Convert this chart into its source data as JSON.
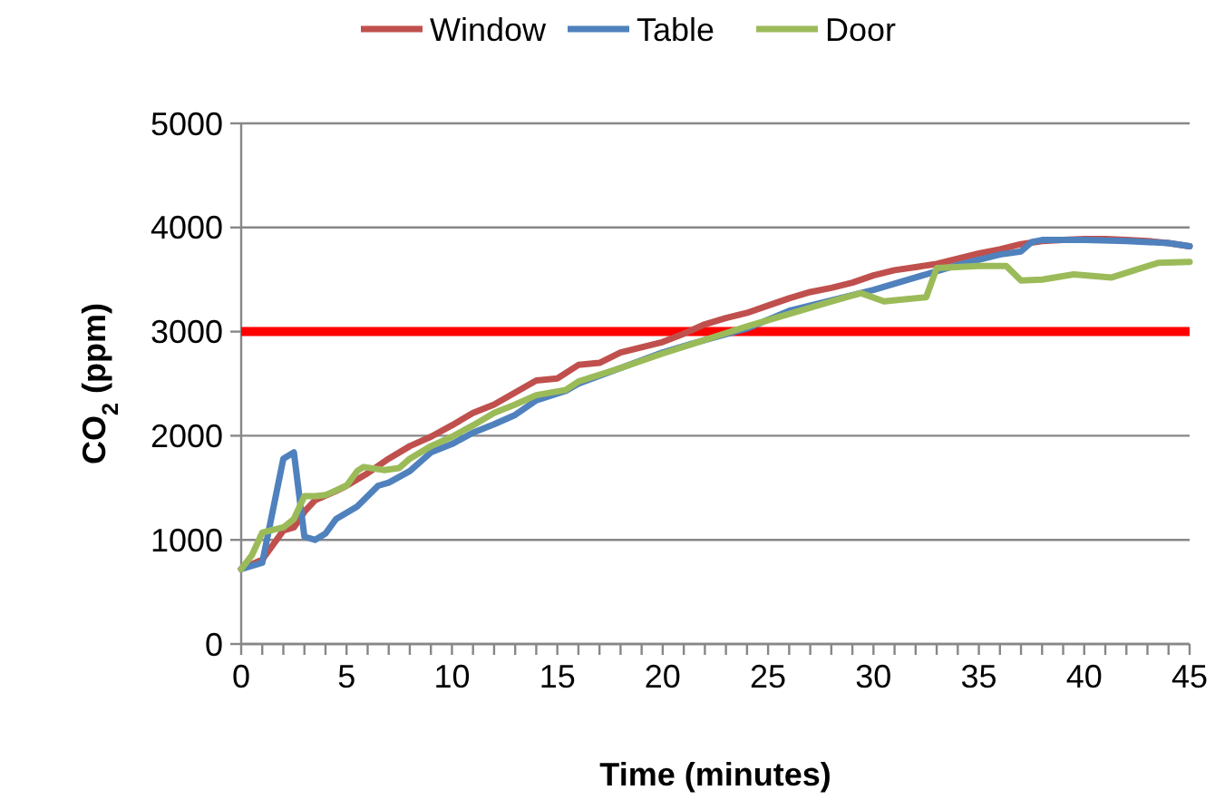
{
  "chart_data": {
    "type": "line",
    "xlabel": "Time (minutes)",
    "ylabel": "CO$_{2}$ (ppm)",
    "xlim": [
      0,
      45
    ],
    "ylim": [
      0,
      5000
    ],
    "xticks": [
      0,
      {
        "value": 1,
        "label": null
      },
      {
        "value": 2,
        "label": null
      },
      {
        "value": 3,
        "label": null
      },
      {
        "value": 4,
        "label": null
      },
      5,
      {
        "value": 6,
        "label": null
      },
      {
        "value": 7,
        "label": null
      },
      {
        "value": 8,
        "label": null
      },
      {
        "value": 9,
        "label": null
      },
      10,
      {
        "value": 11,
        "label": null
      },
      {
        "value": 12,
        "label": null
      },
      {
        "value": 13,
        "label": null
      },
      {
        "value": 14,
        "label": null
      },
      15,
      {
        "value": 16,
        "label": null
      },
      {
        "value": 17,
        "label": null
      },
      {
        "value": 18,
        "label": null
      },
      {
        "value": 19,
        "label": null
      },
      20,
      {
        "value": 21,
        "label": null
      },
      {
        "value": 22,
        "label": null
      },
      {
        "value": 23,
        "label": null
      },
      {
        "value": 24,
        "label": null
      },
      25,
      {
        "value": 26,
        "label": null
      },
      {
        "value": 27,
        "label": null
      },
      {
        "value": 28,
        "label": null
      },
      {
        "value": 29,
        "label": null
      },
      30,
      {
        "value": 31,
        "label": null
      },
      {
        "value": 32,
        "label": null
      },
      {
        "value": 33,
        "label": null
      },
      {
        "value": 34,
        "label": null
      },
      35,
      {
        "value": 36,
        "label": null
      },
      {
        "value": 37,
        "label": null
      },
      {
        "value": 38,
        "label": null
      },
      {
        "value": 39,
        "label": null
      },
      40,
      {
        "value": 41,
        "label": null
      },
      {
        "value": 42,
        "label": null
      },
      {
        "value": 43,
        "label": null
      },
      {
        "value": 44,
        "label": null
      },
      45
    ],
    "yticks": [
      0,
      1000,
      2000,
      3000,
      4000,
      5000
    ],
    "grid": "y",
    "legend": "top",
    "marker": "none",
    "line_style": "solid",
    "ref_lines": [
      {
        "axis": "y",
        "value": 3000,
        "color": "#ff0000"
      }
    ],
    "series": [
      {
        "name": "Window",
        "color": "#c0504d",
        "x": [
          0,
          1,
          1.5,
          2,
          2.5,
          3,
          3.5,
          4.5,
          5,
          6,
          7,
          8,
          9,
          10,
          11,
          12,
          13,
          14,
          15,
          16,
          17,
          18,
          19,
          20,
          21,
          22,
          23,
          24,
          25,
          26,
          27,
          28,
          29,
          30,
          31,
          32,
          33,
          34,
          35,
          36,
          37,
          38,
          39,
          40,
          41,
          42,
          43,
          44,
          45
        ],
        "values": [
          720,
          810,
          950,
          1090,
          1120,
          1270,
          1380,
          1470,
          1520,
          1640,
          1780,
          1900,
          1990,
          2100,
          2220,
          2300,
          2415,
          2530,
          2550,
          2680,
          2700,
          2800,
          2850,
          2900,
          2980,
          3070,
          3130,
          3180,
          3250,
          3320,
          3380,
          3420,
          3470,
          3540,
          3590,
          3620,
          3650,
          3700,
          3750,
          3790,
          3840,
          3870,
          3880,
          3890,
          3890,
          3880,
          3870,
          3850,
          3820
        ]
      },
      {
        "name": "Table",
        "color": "#4f81bd",
        "x": [
          0,
          1,
          2,
          2.5,
          3,
          3.5,
          4,
          4.5,
          5.5,
          6.5,
          7,
          8,
          9,
          10,
          11,
          12,
          13,
          14,
          15.4,
          16,
          18,
          20,
          22,
          24,
          26,
          28,
          30,
          32,
          34,
          36,
          37,
          37.5,
          38,
          40,
          42,
          44,
          45
        ],
        "values": [
          720,
          780,
          1780,
          1840,
          1030,
          1000,
          1060,
          1200,
          1320,
          1520,
          1550,
          1660,
          1840,
          1920,
          2030,
          2110,
          2200,
          2340,
          2430,
          2500,
          2650,
          2800,
          2920,
          3030,
          3200,
          3300,
          3400,
          3520,
          3640,
          3740,
          3770,
          3860,
          3880,
          3880,
          3870,
          3850,
          3820
        ]
      },
      {
        "name": "Door",
        "color": "#9bbb59",
        "x": [
          0,
          0.5,
          1,
          2,
          2.5,
          3,
          3.5,
          4,
          5,
          5.5,
          5.8,
          6.8,
          7.5,
          8,
          9,
          10,
          11,
          12,
          13,
          14,
          15.4,
          16,
          18,
          20,
          22,
          24,
          26,
          28,
          29.4,
          30.5,
          32.5,
          33,
          35,
          36.3,
          37,
          38,
          39.5,
          41.3,
          43.5,
          45
        ],
        "values": [
          720,
          850,
          1070,
          1120,
          1200,
          1420,
          1420,
          1430,
          1520,
          1660,
          1700,
          1670,
          1690,
          1780,
          1900,
          1990,
          2100,
          2220,
          2300,
          2390,
          2440,
          2520,
          2650,
          2790,
          2920,
          3050,
          3170,
          3290,
          3370,
          3290,
          3330,
          3610,
          3630,
          3630,
          3490,
          3500,
          3550,
          3520,
          3660,
          3670
        ]
      }
    ]
  }
}
